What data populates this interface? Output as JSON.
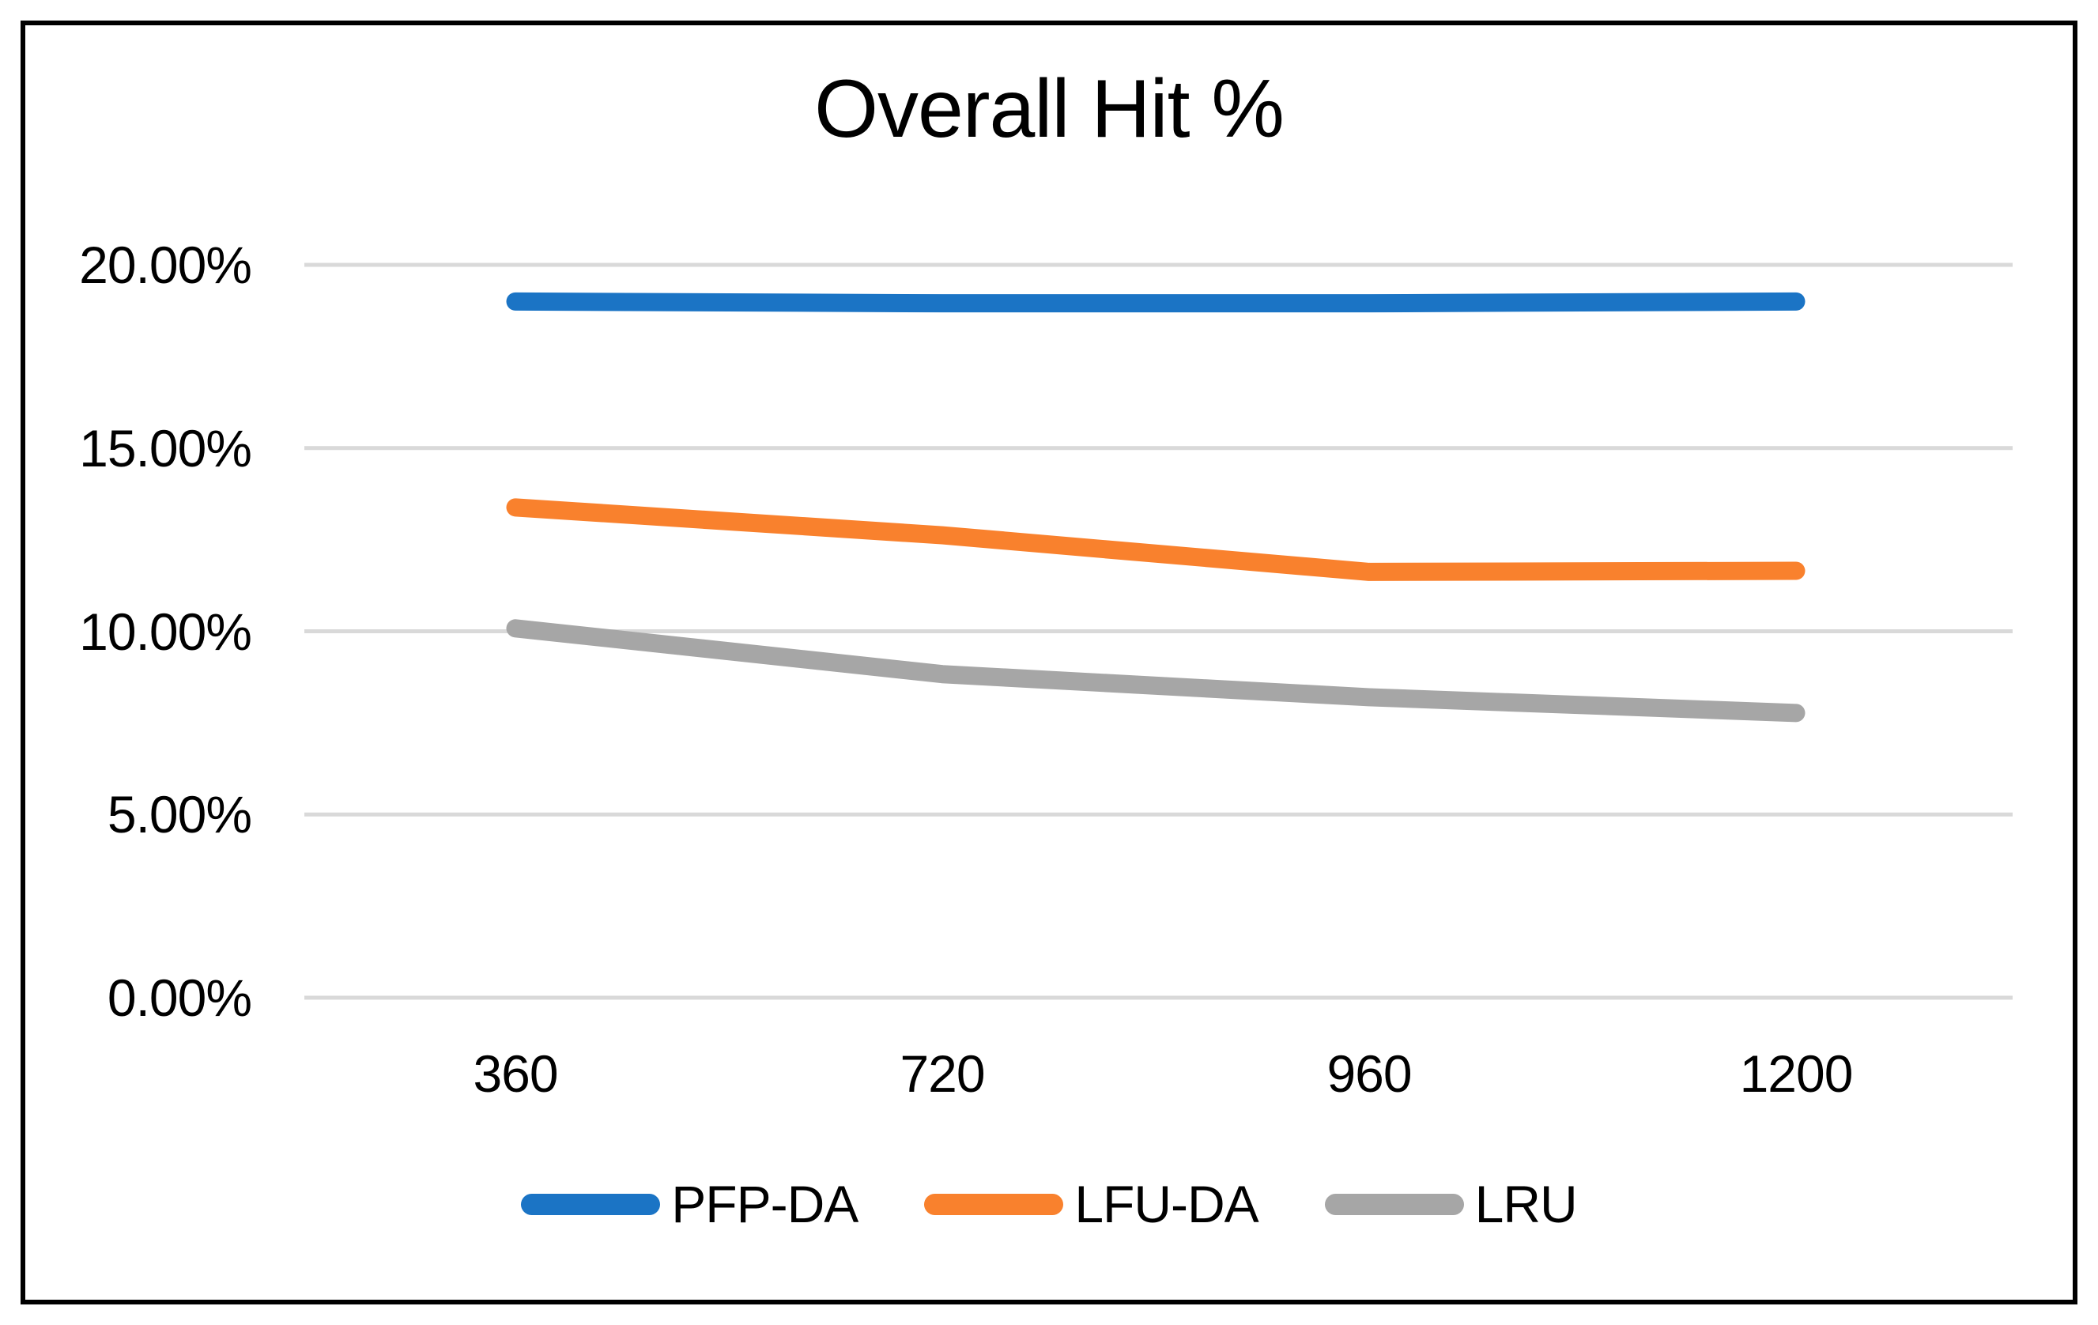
{
  "chart_data": {
    "type": "line",
    "title": "Overall Hit %",
    "xlabel": "",
    "ylabel": "",
    "categories": [
      "360",
      "720",
      "960",
      "1200"
    ],
    "series": [
      {
        "name": "PFP-DA",
        "color": "#1B74C5",
        "values": [
          19.0,
          18.95,
          18.95,
          19.0
        ]
      },
      {
        "name": "LFU-DA",
        "color": "#F9812D",
        "values": [
          13.38,
          12.62,
          11.62,
          11.65
        ]
      },
      {
        "name": "LRU",
        "color": "#A6A6A6",
        "values": [
          10.08,
          8.83,
          8.2,
          7.77
        ]
      }
    ],
    "ylim": [
      0,
      20
    ],
    "yticks": [
      {
        "value": 0,
        "label": "0.00%"
      },
      {
        "value": 5,
        "label": "5.00%"
      },
      {
        "value": 10,
        "label": "10.00%"
      },
      {
        "value": 15,
        "label": "15.00%"
      },
      {
        "value": 20,
        "label": "20.00%"
      }
    ],
    "grid": "horizontal-only",
    "gridline_color": "#D9D9D9",
    "legend_position": "bottom"
  }
}
